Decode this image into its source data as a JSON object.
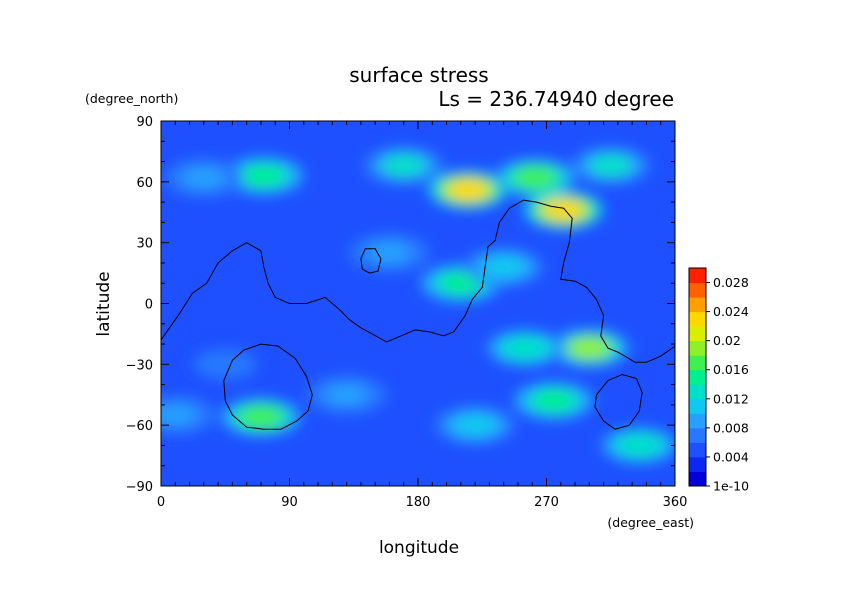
{
  "chart_data": {
    "type": "heatmap",
    "title": "surface stress",
    "subtitle": "Ls = 236.74940 degree",
    "xlabel": "longitude",
    "ylabel": "latitude",
    "x_unit": "(degree_east)",
    "y_unit": "(degree_north)",
    "xlim": [
      0,
      360
    ],
    "ylim": [
      -90,
      90
    ],
    "x_ticks": [
      {
        "value": 0,
        "label": "0"
      },
      {
        "value": 90,
        "label": "90"
      },
      {
        "value": 180,
        "label": "180"
      },
      {
        "value": 270,
        "label": "270"
      },
      {
        "value": 360,
        "label": "360"
      }
    ],
    "y_ticks": [
      {
        "value": 90,
        "label": "90"
      },
      {
        "value": 60,
        "label": "60"
      },
      {
        "value": 30,
        "label": "30"
      },
      {
        "value": 0,
        "label": "0"
      },
      {
        "value": -30,
        "label": "−30"
      },
      {
        "value": -60,
        "label": "−60"
      },
      {
        "value": -90,
        "label": "−90"
      }
    ],
    "colorbar": {
      "min": 0,
      "max": 0.03,
      "colors": [
        "#0000d8",
        "#0a28f0",
        "#1e50ff",
        "#2878ff",
        "#28a0ff",
        "#10c8f0",
        "#00e0c8",
        "#00f090",
        "#40f050",
        "#90f028",
        "#d8f000",
        "#ffd800",
        "#ffa000",
        "#ff6000",
        "#ff2000"
      ],
      "tick_labels": [
        {
          "value": 0,
          "label": "1e-10"
        },
        {
          "value": 0.004,
          "label": "0.004"
        },
        {
          "value": 0.008,
          "label": "0.008"
        },
        {
          "value": 0.012,
          "label": "0.012"
        },
        {
          "value": 0.016,
          "label": "0.016"
        },
        {
          "value": 0.02,
          "label": "0.02"
        },
        {
          "value": 0.024,
          "label": "0.024"
        },
        {
          "value": 0.028,
          "label": "0.028"
        }
      ]
    },
    "background_level": 0.005,
    "features": [
      {
        "lon": 72,
        "lat": 63,
        "value": 0.015
      },
      {
        "lon": 30,
        "lat": 62,
        "value": 0.009
      },
      {
        "lon": 170,
        "lat": 68,
        "value": 0.012
      },
      {
        "lon": 215,
        "lat": 56,
        "value": 0.022
      },
      {
        "lon": 262,
        "lat": 62,
        "value": 0.016
      },
      {
        "lon": 282,
        "lat": 46,
        "value": 0.023
      },
      {
        "lon": 315,
        "lat": 68,
        "value": 0.012
      },
      {
        "lon": 210,
        "lat": 10,
        "value": 0.014
      },
      {
        "lon": 240,
        "lat": 18,
        "value": 0.011
      },
      {
        "lon": 160,
        "lat": 25,
        "value": 0.009
      },
      {
        "lon": 300,
        "lat": -22,
        "value": 0.018
      },
      {
        "lon": 255,
        "lat": -22,
        "value": 0.013
      },
      {
        "lon": 275,
        "lat": -48,
        "value": 0.014
      },
      {
        "lon": 70,
        "lat": -56,
        "value": 0.017
      },
      {
        "lon": 45,
        "lat": -30,
        "value": 0.007
      },
      {
        "lon": 220,
        "lat": -60,
        "value": 0.011
      },
      {
        "lon": 335,
        "lat": -70,
        "value": 0.013
      },
      {
        "lon": 10,
        "lat": -55,
        "value": 0.009
      },
      {
        "lon": 130,
        "lat": -45,
        "value": 0.008
      }
    ],
    "contours": [
      {
        "name": "outline-1",
        "closed": false,
        "points": [
          [
            0,
            -18
          ],
          [
            12,
            -6
          ],
          [
            22,
            5
          ],
          [
            32,
            10
          ],
          [
            40,
            20
          ],
          [
            50,
            26
          ],
          [
            60,
            30
          ],
          [
            70,
            26
          ],
          [
            72,
            18
          ],
          [
            75,
            10
          ],
          [
            80,
            3
          ],
          [
            90,
            0
          ],
          [
            102,
            0
          ],
          [
            115,
            3
          ],
          [
            125,
            -3
          ],
          [
            132,
            -8
          ],
          [
            140,
            -12
          ],
          [
            148,
            -15
          ],
          [
            158,
            -19
          ],
          [
            168,
            -16
          ],
          [
            178,
            -13
          ],
          [
            188,
            -14
          ],
          [
            198,
            -16
          ],
          [
            205,
            -14
          ],
          [
            213,
            -6
          ],
          [
            218,
            2
          ],
          [
            225,
            8
          ],
          [
            227,
            18
          ],
          [
            229,
            28
          ],
          [
            234,
            31
          ],
          [
            237,
            40
          ],
          [
            244,
            47
          ],
          [
            254,
            51
          ],
          [
            263,
            50
          ],
          [
            273,
            48
          ],
          [
            282,
            47
          ],
          [
            288,
            42
          ],
          [
            286,
            30
          ],
          [
            282,
            20
          ],
          [
            280,
            12
          ],
          [
            290,
            11
          ],
          [
            298,
            8
          ],
          [
            305,
            2
          ],
          [
            310,
            -6
          ],
          [
            308,
            -16
          ],
          [
            313,
            -22
          ],
          [
            320,
            -24
          ],
          [
            325,
            -26
          ],
          [
            332,
            -29
          ],
          [
            340,
            -29
          ],
          [
            350,
            -26
          ],
          [
            360,
            -21
          ]
        ]
      },
      {
        "name": "outline-2",
        "closed": true,
        "points": [
          [
            140,
            22
          ],
          [
            143,
            27
          ],
          [
            150,
            27
          ],
          [
            154,
            22
          ],
          [
            152,
            16
          ],
          [
            146,
            15
          ],
          [
            141,
            17
          ]
        ]
      },
      {
        "name": "outline-3",
        "closed": true,
        "points": [
          [
            50,
            -28
          ],
          [
            58,
            -23
          ],
          [
            70,
            -20
          ],
          [
            82,
            -21
          ],
          [
            94,
            -27
          ],
          [
            102,
            -36
          ],
          [
            106,
            -45
          ],
          [
            103,
            -53
          ],
          [
            95,
            -58
          ],
          [
            84,
            -62
          ],
          [
            72,
            -62
          ],
          [
            60,
            -61
          ],
          [
            50,
            -55
          ],
          [
            45,
            -48
          ],
          [
            44,
            -38
          ]
        ]
      },
      {
        "name": "outline-4",
        "closed": true,
        "points": [
          [
            305,
            -45
          ],
          [
            313,
            -38
          ],
          [
            323,
            -35
          ],
          [
            333,
            -37
          ],
          [
            337,
            -44
          ],
          [
            335,
            -53
          ],
          [
            328,
            -60
          ],
          [
            318,
            -62
          ],
          [
            310,
            -58
          ],
          [
            304,
            -51
          ]
        ]
      }
    ]
  }
}
